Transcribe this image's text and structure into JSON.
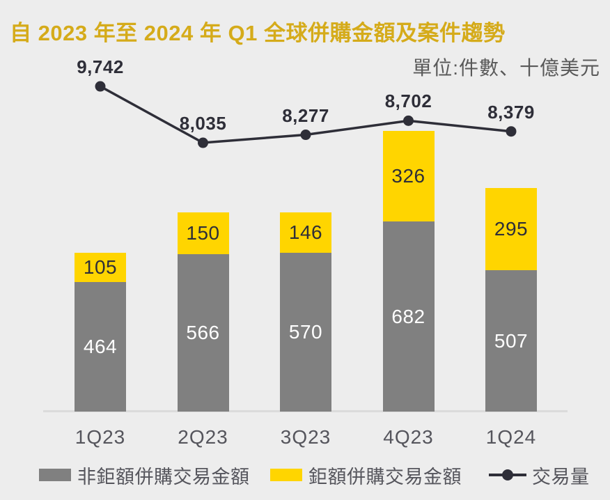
{
  "chart_data": {
    "type": "bar",
    "subtype": "stacked-bar-with-line",
    "title": "自 2023 年至 2024 年 Q1 全球併購金額及案件趨勢",
    "unit_note": "單位:件數、十億美元",
    "categories": [
      "1Q23",
      "2Q23",
      "3Q23",
      "4Q23",
      "1Q24"
    ],
    "series": [
      {
        "name": "非鉅額併購交易金額",
        "type": "bar",
        "stack": "amount",
        "color": "#808080",
        "label_color": "#FFFFFF",
        "values": [
          464,
          566,
          570,
          682,
          507
        ]
      },
      {
        "name": "鉅額併購交易金額",
        "type": "bar",
        "stack": "amount",
        "color": "#FFD500",
        "label_color": "#2E2E38",
        "values": [
          105,
          150,
          146,
          326,
          295
        ]
      },
      {
        "name": "交易量",
        "type": "line",
        "color": "#2E2E38",
        "values": [
          9742,
          8035,
          8277,
          8702,
          8379
        ],
        "labels": [
          "9,742",
          "8,035",
          "8,277",
          "8,702",
          "8,379"
        ]
      }
    ],
    "legend_position": "bottom",
    "grid": false
  },
  "colors": {
    "background": "#EDEDED",
    "title": "#D5AB1A",
    "axis_line": "#DBDBDB",
    "axis_text": "#55555C"
  }
}
